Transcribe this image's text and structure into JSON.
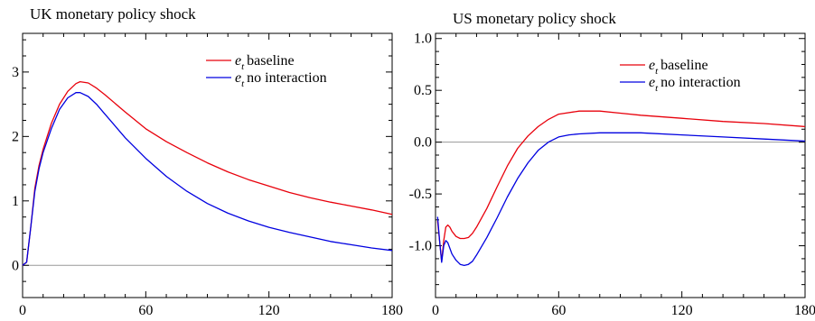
{
  "chart_data": [
    {
      "type": "line",
      "title": "UK monetary policy shock",
      "xlabel": "",
      "ylabel": "",
      "xlim": [
        0,
        180
      ],
      "ylim": [
        -0.5,
        3.6
      ],
      "x_ticks": [
        0,
        60,
        120,
        180
      ],
      "x_tick_labels": [
        "0",
        "60",
        "120",
        "180"
      ],
      "y_ticks": [
        0,
        1,
        2,
        3
      ],
      "y_tick_labels": [
        "0",
        "1",
        "2",
        "3"
      ],
      "zero_line": true,
      "grid": false,
      "legend_position": "top-right",
      "series": [
        {
          "name": "baseline",
          "name_variable": "e",
          "name_subscript": "t",
          "color": "#e8000b",
          "x": [
            0,
            2,
            4,
            6,
            8,
            10,
            14,
            18,
            22,
            26,
            28,
            32,
            36,
            40,
            50,
            60,
            70,
            80,
            90,
            100,
            110,
            120,
            130,
            140,
            150,
            160,
            170,
            180
          ],
          "values": [
            0.0,
            0.05,
            0.6,
            1.2,
            1.55,
            1.8,
            2.2,
            2.5,
            2.7,
            2.82,
            2.85,
            2.83,
            2.75,
            2.65,
            2.38,
            2.12,
            1.92,
            1.75,
            1.59,
            1.45,
            1.33,
            1.23,
            1.13,
            1.05,
            0.98,
            0.92,
            0.86,
            0.79
          ]
        },
        {
          "name": "no interaction",
          "name_variable": "e",
          "name_subscript": "t",
          "color": "#0000e0",
          "x": [
            0,
            2,
            4,
            6,
            8,
            10,
            14,
            18,
            22,
            26,
            28,
            32,
            36,
            40,
            50,
            60,
            70,
            80,
            90,
            100,
            110,
            120,
            130,
            140,
            150,
            160,
            170,
            180
          ],
          "values": [
            0.0,
            0.05,
            0.6,
            1.15,
            1.5,
            1.75,
            2.12,
            2.42,
            2.6,
            2.68,
            2.68,
            2.62,
            2.5,
            2.35,
            1.98,
            1.66,
            1.38,
            1.15,
            0.96,
            0.81,
            0.69,
            0.59,
            0.51,
            0.44,
            0.37,
            0.32,
            0.27,
            0.23
          ]
        }
      ]
    },
    {
      "type": "line",
      "title": "US monetary policy shock",
      "xlabel": "",
      "ylabel": "",
      "xlim": [
        0,
        180
      ],
      "ylim": [
        -1.5,
        1.05
      ],
      "x_ticks": [
        0,
        60,
        120,
        180
      ],
      "x_tick_labels": [
        "0",
        "60",
        "120",
        "180"
      ],
      "y_ticks": [
        -1.0,
        -0.5,
        0.0,
        0.5,
        1.0
      ],
      "y_tick_labels": [
        "-1.0",
        "-0.5",
        "0.0",
        "0.5",
        "1.0"
      ],
      "zero_line": true,
      "grid": false,
      "legend_position": "top-right",
      "series": [
        {
          "name": "baseline",
          "name_variable": "e",
          "name_subscript": "t",
          "color": "#e8000b",
          "x": [
            1,
            2,
            3,
            4,
            5,
            6,
            7,
            8,
            10,
            12,
            14,
            16,
            18,
            20,
            25,
            30,
            35,
            40,
            45,
            50,
            55,
            60,
            70,
            80,
            90,
            100,
            120,
            140,
            160,
            180
          ],
          "values": [
            -0.76,
            -0.95,
            -1.15,
            -0.95,
            -0.82,
            -0.8,
            -0.82,
            -0.86,
            -0.91,
            -0.93,
            -0.93,
            -0.92,
            -0.88,
            -0.82,
            -0.64,
            -0.43,
            -0.23,
            -0.06,
            0.06,
            0.15,
            0.22,
            0.27,
            0.3,
            0.3,
            0.28,
            0.26,
            0.23,
            0.2,
            0.18,
            0.15
          ]
        },
        {
          "name": "no interaction",
          "name_variable": "e",
          "name_subscript": "t",
          "color": "#0000e0",
          "x": [
            1,
            2,
            3,
            4,
            5,
            6,
            8,
            10,
            12,
            14,
            16,
            18,
            20,
            25,
            30,
            35,
            40,
            45,
            50,
            55,
            60,
            65,
            70,
            80,
            90,
            100,
            120,
            140,
            160,
            180
          ],
          "values": [
            -0.72,
            -0.95,
            -1.16,
            -1.0,
            -0.95,
            -0.97,
            -1.08,
            -1.14,
            -1.18,
            -1.19,
            -1.18,
            -1.15,
            -1.09,
            -0.92,
            -0.73,
            -0.53,
            -0.35,
            -0.2,
            -0.08,
            0.0,
            0.05,
            0.07,
            0.08,
            0.09,
            0.09,
            0.09,
            0.07,
            0.05,
            0.03,
            0.01
          ]
        }
      ]
    }
  ]
}
